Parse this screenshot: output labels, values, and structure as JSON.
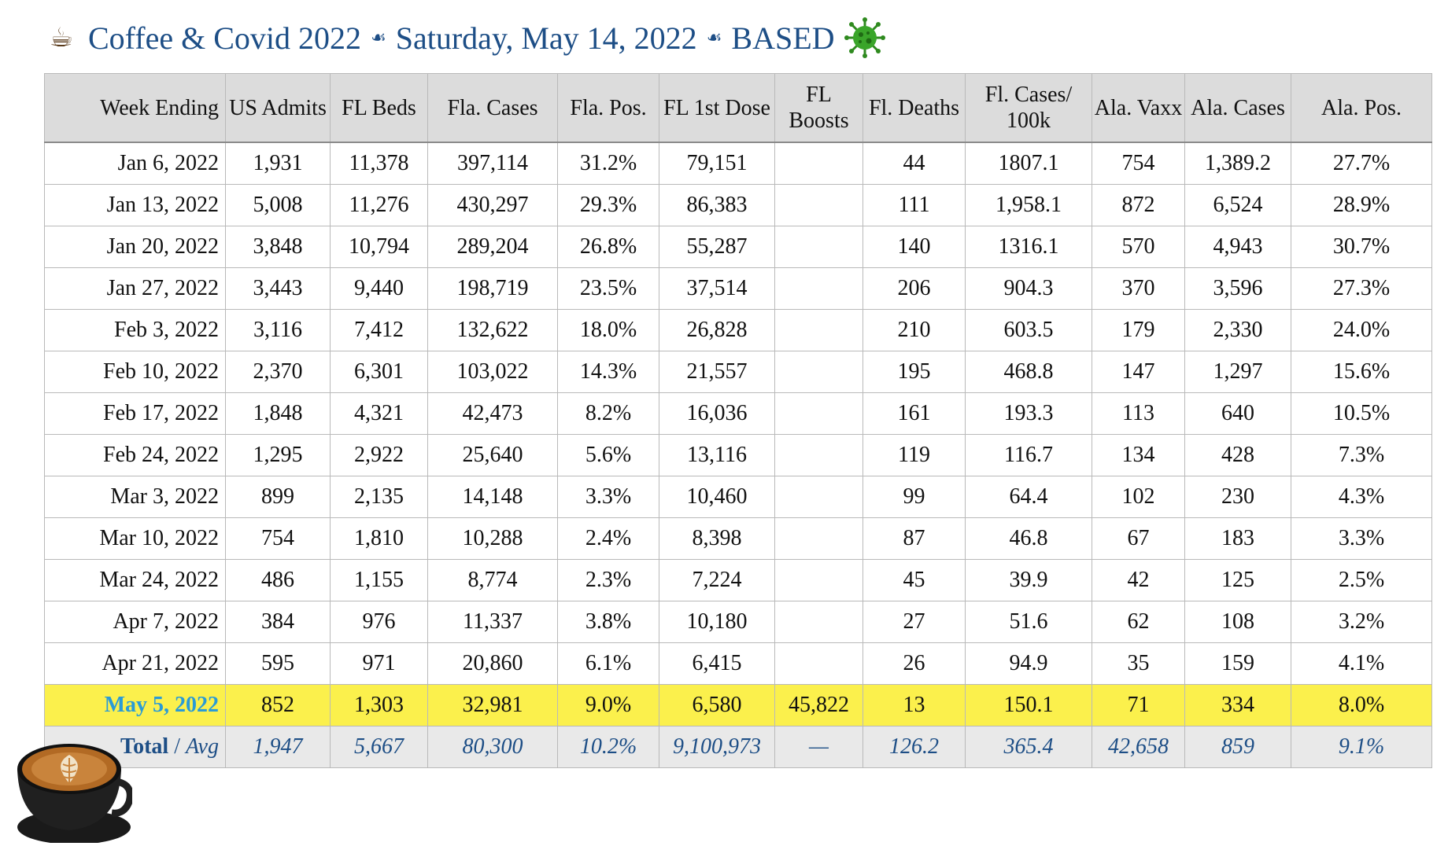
{
  "header": {
    "cup_icon": "coffee-cup-icon",
    "part1": "Coffee & Covid 2022",
    "separator": "☙",
    "part2": "Saturday, May 14, 2022",
    "part3": "BASED",
    "virus_icon": "virus-icon",
    "title_color": "#1d4e86"
  },
  "table": {
    "columns": [
      "Week Ending",
      "US Admits",
      "FL Beds",
      "Fla. Cases",
      "Fla. Pos.",
      "FL 1st Dose",
      "FL Boosts",
      "Fl. Deaths",
      "Fl. Cases/ 100k",
      "Ala. Vaxx",
      "Ala. Cases",
      "Ala. Pos."
    ],
    "rows": [
      [
        "Jan 6, 2022",
        "1,931",
        "11,378",
        "397,114",
        "31.2%",
        "79,151",
        "",
        "44",
        "1807.1",
        "754",
        "1,389.2",
        "27.7%"
      ],
      [
        "Jan 13, 2022",
        "5,008",
        "11,276",
        "430,297",
        "29.3%",
        "86,383",
        "",
        "111",
        "1,958.1",
        "872",
        "6,524",
        "28.9%"
      ],
      [
        "Jan 20, 2022",
        "3,848",
        "10,794",
        "289,204",
        "26.8%",
        "55,287",
        "",
        "140",
        "1316.1",
        "570",
        "4,943",
        "30.7%"
      ],
      [
        "Jan 27, 2022",
        "3,443",
        "9,440",
        "198,719",
        "23.5%",
        "37,514",
        "",
        "206",
        "904.3",
        "370",
        "3,596",
        "27.3%"
      ],
      [
        "Feb 3, 2022",
        "3,116",
        "7,412",
        "132,622",
        "18.0%",
        "26,828",
        "",
        "210",
        "603.5",
        "179",
        "2,330",
        "24.0%"
      ],
      [
        "Feb 10, 2022",
        "2,370",
        "6,301",
        "103,022",
        "14.3%",
        "21,557",
        "",
        "195",
        "468.8",
        "147",
        "1,297",
        "15.6%"
      ],
      [
        "Feb 17, 2022",
        "1,848",
        "4,321",
        "42,473",
        "8.2%",
        "16,036",
        "",
        "161",
        "193.3",
        "113",
        "640",
        "10.5%"
      ],
      [
        "Feb 24, 2022",
        "1,295",
        "2,922",
        "25,640",
        "5.6%",
        "13,116",
        "",
        "119",
        "116.7",
        "134",
        "428",
        "7.3%"
      ],
      [
        "Mar 3, 2022",
        "899",
        "2,135",
        "14,148",
        "3.3%",
        "10,460",
        "",
        "99",
        "64.4",
        "102",
        "230",
        "4.3%"
      ],
      [
        "Mar 10, 2022",
        "754",
        "1,810",
        "10,288",
        "2.4%",
        "8,398",
        "",
        "87",
        "46.8",
        "67",
        "183",
        "3.3%"
      ],
      [
        "Mar 24, 2022",
        "486",
        "1,155",
        "8,774",
        "2.3%",
        "7,224",
        "",
        "45",
        "39.9",
        "42",
        "125",
        "2.5%"
      ],
      [
        "Apr 7, 2022",
        "384",
        "976",
        "11,337",
        "3.8%",
        "10,180",
        "",
        "27",
        "51.6",
        "62",
        "108",
        "3.2%"
      ],
      [
        "Apr 21, 2022",
        "595",
        "971",
        "20,860",
        "6.1%",
        "6,415",
        "",
        "26",
        "94.9",
        "35",
        "159",
        "4.1%"
      ]
    ],
    "highlight_row": [
      "May 5, 2022",
      "852",
      "1,303",
      "32,981",
      "9.0%",
      "6,580",
      "45,822",
      "13",
      "150.1",
      "71",
      "334",
      "8.0%"
    ],
    "highlight_color": "#fbf04c",
    "highlight_date_color": "#2a9bd6",
    "total_row": {
      "label_total": "Total",
      "label_slash": "/",
      "label_avg": "Avg",
      "values": [
        "1,947",
        "5,667",
        "80,300",
        "10.2%",
        "9,100,973",
        "—",
        "126.2",
        "365.4",
        "42,658",
        "859",
        "9.1%"
      ]
    }
  },
  "decor": {
    "coffee_photo": "latte-cup-image"
  }
}
